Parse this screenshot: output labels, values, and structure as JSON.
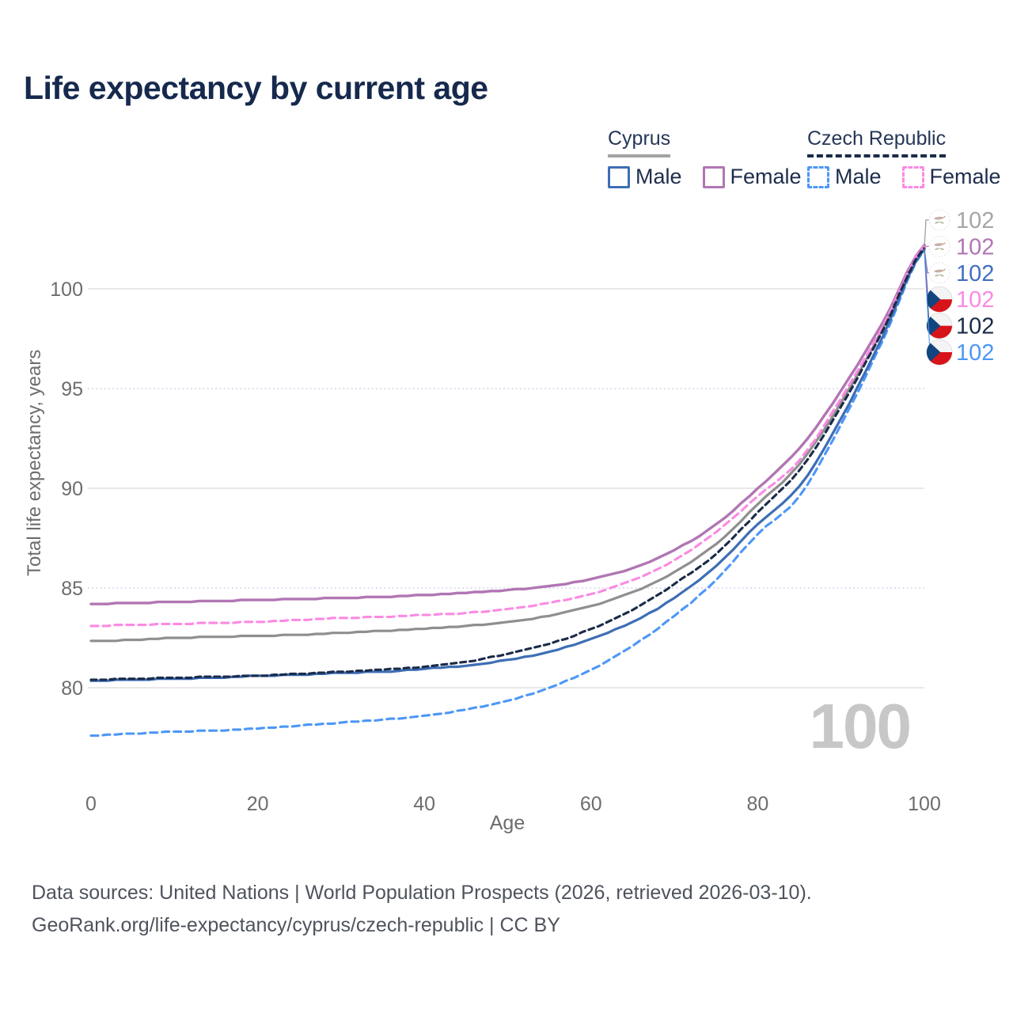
{
  "header": {
    "title": "Life expectancy by current age"
  },
  "legend": {
    "groups": [
      {
        "name": "Cyprus",
        "underline_color": "#a3a3a3",
        "underline_style": "solid",
        "items": [
          {
            "label": "Male",
            "color": "#3d6eb5",
            "dashed": false
          },
          {
            "label": "Female",
            "color": "#b176b3",
            "dashed": false
          }
        ]
      },
      {
        "name": "Czech Republic",
        "underline_color": "#1b2b49",
        "underline_style": "dashed",
        "items": [
          {
            "label": "Male",
            "color": "#4d97f7",
            "dashed": true
          },
          {
            "label": "Female",
            "color": "#fb8ae2",
            "dashed": true
          }
        ]
      }
    ]
  },
  "chart_data": {
    "type": "line",
    "title": "Life expectancy by current age",
    "xlabel": "Age",
    "ylabel": "Total life expectancy, years",
    "watermark": "100",
    "xlim": [
      0,
      100
    ],
    "ylim": [
      77,
      102.5
    ],
    "x_ticks": [
      0,
      20,
      40,
      60,
      80,
      100
    ],
    "y_ticks": [
      80,
      85,
      90,
      95,
      100
    ],
    "grid": "on",
    "legend_position": "top-right",
    "x": [
      0,
      5,
      10,
      15,
      20,
      25,
      30,
      35,
      40,
      45,
      50,
      55,
      60,
      65,
      70,
      75,
      80,
      85,
      90,
      95,
      100
    ],
    "series": [
      {
        "name": "Cyprus Both",
        "country": "Cyprus",
        "flag": "cy",
        "color": "#8f8f8f",
        "label_color": "#a6a6a6",
        "dash": null,
        "width": 3.2,
        "draw_order": 2,
        "end_label": "102",
        "values": [
          82.35,
          82.4,
          82.5,
          82.55,
          82.6,
          82.65,
          82.75,
          82.85,
          82.95,
          83.1,
          83.3,
          83.6,
          84.1,
          84.8,
          85.8,
          87.2,
          89.2,
          91.2,
          94.3,
          98.0,
          102.1
        ]
      },
      {
        "name": "Cyprus Female",
        "country": "Cyprus",
        "flag": "cy",
        "color": "#b176b3",
        "label_color": "#b176b3",
        "dash": null,
        "width": 3.4,
        "draw_order": 4,
        "end_label": "102",
        "values": [
          84.2,
          84.25,
          84.3,
          84.35,
          84.4,
          84.45,
          84.5,
          84.55,
          84.65,
          84.75,
          84.9,
          85.1,
          85.45,
          86.0,
          86.9,
          88.2,
          90.0,
          92.0,
          94.9,
          98.3,
          102.2
        ]
      },
      {
        "name": "Cyprus Male",
        "country": "Cyprus",
        "flag": "cy",
        "color": "#3d6eb5",
        "label_color": "#4170c0",
        "dash": null,
        "width": 3.2,
        "draw_order": 3,
        "end_label": "102",
        "values": [
          80.35,
          80.4,
          80.45,
          80.5,
          80.6,
          80.65,
          80.75,
          80.8,
          80.95,
          81.1,
          81.4,
          81.8,
          82.45,
          83.3,
          84.5,
          86.1,
          88.2,
          90.1,
          93.5,
          97.6,
          102.0
        ]
      },
      {
        "name": "Czech Republic Female",
        "country": "Czech Republic",
        "flag": "cz",
        "color": "#fb8ae2",
        "label_color": "#fb8ae2",
        "dash": "9 6",
        "width": 3.1,
        "draw_order": 5,
        "end_label": "102",
        "values": [
          83.1,
          83.15,
          83.2,
          83.25,
          83.3,
          83.4,
          83.5,
          83.55,
          83.65,
          83.75,
          83.95,
          84.25,
          84.7,
          85.4,
          86.4,
          87.8,
          89.6,
          91.4,
          94.5,
          98.1,
          102.15
        ]
      },
      {
        "name": "Czech Republic Both",
        "country": "Czech Republic",
        "flag": "cz",
        "color": "#1b2b49",
        "label_color": "#1b2b49",
        "dash": "7 5",
        "width": 3.1,
        "draw_order": 6,
        "end_label": "102",
        "values": [
          80.4,
          80.45,
          80.5,
          80.55,
          80.6,
          80.7,
          80.8,
          80.9,
          81.05,
          81.3,
          81.7,
          82.2,
          82.95,
          83.9,
          85.2,
          86.7,
          88.8,
          90.9,
          94.1,
          97.9,
          102.05
        ]
      },
      {
        "name": "Czech Republic Male",
        "country": "Czech Republic",
        "flag": "cz",
        "color": "#4d97f7",
        "label_color": "#4d97f7",
        "dash": "9 6",
        "width": 3.1,
        "draw_order": 1,
        "end_label": "102",
        "values": [
          77.6,
          77.7,
          77.8,
          77.85,
          77.95,
          78.1,
          78.25,
          78.4,
          78.6,
          78.9,
          79.35,
          80.0,
          80.9,
          82.1,
          83.6,
          85.4,
          87.7,
          89.6,
          93.2,
          97.4,
          101.95
        ]
      }
    ]
  },
  "footer": {
    "line1": "Data sources: United Nations | World Population Prospects (2026, retrieved 2026-03-10).",
    "line2": "GeoRank.org/life-expectancy/cyprus/czech-republic | CC BY"
  }
}
